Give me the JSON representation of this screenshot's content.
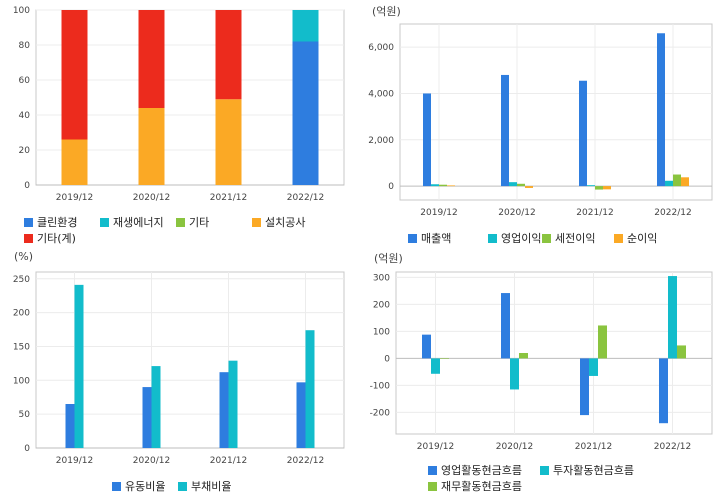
{
  "chart_data": [
    {
      "type": "bar",
      "stacked": true,
      "unit_label": "",
      "categories": [
        "2019/12",
        "2020/12",
        "2021/12",
        "2022/12"
      ],
      "ylim": [
        0,
        100
      ],
      "yticks": [
        0,
        20,
        40,
        60,
        80,
        100
      ],
      "grid": true,
      "legend_position": "bottom",
      "series": [
        {
          "name": "클린환경",
          "color": "#2e7ddf",
          "values": [
            0,
            0,
            0,
            82
          ]
        },
        {
          "name": "재생에너지",
          "color": "#12bccb",
          "values": [
            0,
            0,
            0,
            18
          ]
        },
        {
          "name": "기타",
          "color": "#8ac43f",
          "values": [
            0,
            0,
            0,
            0
          ]
        },
        {
          "name": "설치공사",
          "color": "#fba925",
          "values": [
            26,
            44,
            49,
            0
          ]
        },
        {
          "name": "기타(계)",
          "color": "#ec2b1d",
          "values": [
            74,
            56,
            51,
            0
          ]
        }
      ]
    },
    {
      "type": "bar",
      "unit_label": "(억원)",
      "categories": [
        "2019/12",
        "2020/12",
        "2021/12",
        "2022/12"
      ],
      "ylim": [
        -600,
        7000
      ],
      "yticks": [
        0,
        2000,
        4000,
        6000
      ],
      "ytick_labels": [
        "0",
        "2,000",
        "4,000",
        "6,000"
      ],
      "grid": true,
      "legend_position": "bottom",
      "series": [
        {
          "name": "매출액",
          "color": "#2e7ddf",
          "values": [
            4000,
            4800,
            4550,
            6600
          ]
        },
        {
          "name": "영업이익",
          "color": "#12bccb",
          "values": [
            80,
            170,
            40,
            230
          ]
        },
        {
          "name": "세전이익",
          "color": "#8ac43f",
          "values": [
            60,
            100,
            -150,
            500
          ]
        },
        {
          "name": "순이익",
          "color": "#fba925",
          "values": [
            30,
            -80,
            -140,
            380
          ]
        }
      ]
    },
    {
      "type": "bar",
      "unit_label": "(%)",
      "categories": [
        "2019/12",
        "2020/12",
        "2021/12",
        "2022/12"
      ],
      "ylim": [
        0,
        260
      ],
      "yticks": [
        0,
        50,
        100,
        150,
        200,
        250
      ],
      "grid": true,
      "legend_position": "bottom",
      "series": [
        {
          "name": "유동비율",
          "color": "#2e7ddf",
          "values": [
            65,
            90,
            112,
            97
          ]
        },
        {
          "name": "부채비율",
          "color": "#12bccb",
          "values": [
            241,
            121,
            129,
            174
          ]
        }
      ]
    },
    {
      "type": "bar",
      "unit_label": "(억원)",
      "categories": [
        "2019/12",
        "2020/12",
        "2021/12",
        "2022/12"
      ],
      "ylim": [
        -280,
        320
      ],
      "yticks": [
        -200,
        -100,
        0,
        100,
        200,
        300
      ],
      "grid": true,
      "legend_position": "bottom",
      "series": [
        {
          "name": "영업활동현금흐름",
          "color": "#2e7ddf",
          "values": [
            88,
            242,
            -210,
            -240
          ]
        },
        {
          "name": "투자활동현금흐름",
          "color": "#12bccb",
          "values": [
            -57,
            -115,
            -65,
            305
          ]
        },
        {
          "name": "재무활동현금흐름",
          "color": "#8ac43f",
          "values": [
            -2,
            20,
            122,
            48
          ]
        }
      ]
    }
  ]
}
